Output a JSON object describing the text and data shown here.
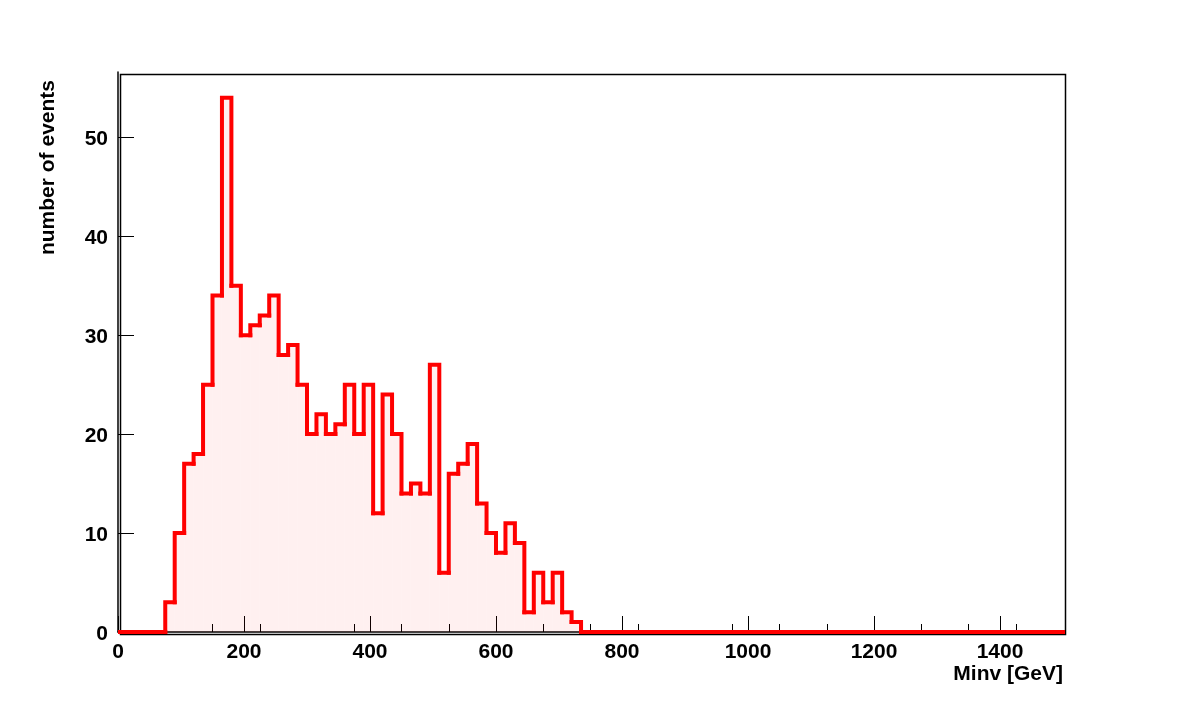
{
  "chart_data": {
    "type": "histogram",
    "xlabel": "Minv [GeV]",
    "ylabel": "number of events",
    "color": "#ff0000",
    "bins": [
      0,
      15,
      30,
      45,
      60,
      75,
      90,
      105,
      120,
      135,
      150,
      165,
      180,
      195,
      210,
      225,
      240,
      255,
      270,
      285,
      300,
      315,
      330,
      345,
      360,
      375,
      390,
      405,
      420,
      435,
      450,
      465,
      480,
      495,
      510,
      525,
      540,
      555,
      570,
      585,
      600,
      615,
      630,
      645,
      660,
      675,
      690,
      705,
      720,
      735,
      750,
      765,
      780,
      795,
      810,
      825,
      840,
      855,
      870,
      885,
      900,
      915,
      930,
      945,
      960,
      975,
      990,
      1005,
      1020,
      1035,
      1050,
      1065,
      1080,
      1095,
      1110,
      1125,
      1140,
      1155,
      1170,
      1185,
      1200,
      1215,
      1230,
      1245,
      1260,
      1275,
      1290,
      1305,
      1320,
      1335,
      1350,
      1365,
      1380,
      1395,
      1410,
      1425,
      1440,
      1455,
      1470,
      1485,
      1500
    ],
    "values": [
      0,
      0,
      0,
      0,
      0,
      3,
      10,
      17,
      18,
      25,
      34,
      54,
      35,
      30,
      31,
      32,
      34,
      28,
      29,
      25,
      20,
      22,
      20,
      21,
      25,
      20,
      25,
      12,
      24,
      20,
      14,
      15,
      14,
      27,
      6,
      16,
      17,
      19,
      13,
      10,
      8,
      11,
      9,
      2,
      6,
      3,
      6,
      2,
      1,
      0,
      0,
      0,
      0,
      0,
      0,
      0,
      0,
      0,
      0,
      0,
      0,
      0,
      0,
      0,
      0,
      0,
      0,
      0,
      0,
      0,
      0,
      0,
      0,
      0,
      0,
      0,
      0,
      0,
      0,
      0,
      0,
      0,
      0,
      0,
      0,
      0,
      0,
      0,
      0,
      0,
      0,
      0,
      0,
      0,
      0,
      0,
      0,
      0,
      0,
      0
    ],
    "xlim": [
      0,
      1500
    ],
    "xticks": [
      0,
      200,
      400,
      600,
      800,
      1000,
      1200,
      1400
    ],
    "ylim": [
      0,
      56.6
    ],
    "yticks": [
      0,
      10,
      20,
      30,
      40,
      50
    ],
    "grid": false,
    "legend": false
  }
}
